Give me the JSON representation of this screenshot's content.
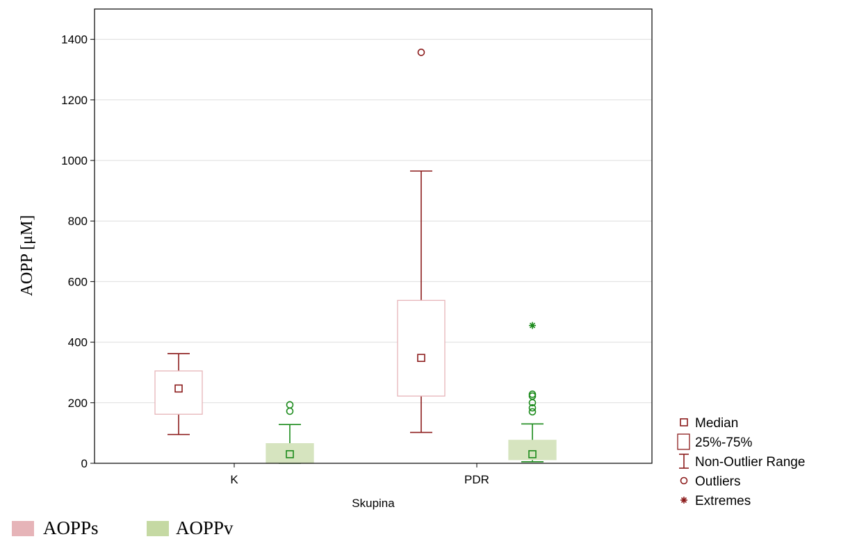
{
  "chart_data": {
    "type": "boxplot",
    "xlabel": "Skupina",
    "ylabel": "AOPP [μM]",
    "ylim": [
      0,
      1500
    ],
    "yticks": [
      0,
      200,
      400,
      600,
      800,
      1000,
      1200,
      1400
    ],
    "categories": [
      "K",
      "PDR"
    ],
    "grid": true,
    "series": [
      {
        "name": "AOPPs",
        "color": "#8b1a1a",
        "fill": "#ffffff",
        "box_edge": "#e6b4b8",
        "boxes": [
          {
            "category": "K",
            "median": 247,
            "q1": 162,
            "q3": 305,
            "whisker_low": 95,
            "whisker_high": 362,
            "outliers": [],
            "extremes": []
          },
          {
            "category": "PDR",
            "median": 348,
            "q1": 222,
            "q3": 538,
            "whisker_low": 102,
            "whisker_high": 965,
            "outliers": [
              1357
            ],
            "extremes": []
          }
        ]
      },
      {
        "name": "AOPPv",
        "color": "#1a8a1a",
        "fill": "#d6e4bf",
        "box_edge": "#d6e4bf",
        "boxes": [
          {
            "category": "K",
            "median": 30,
            "q1": 0,
            "q3": 65,
            "whisker_low": 0,
            "whisker_high": 128,
            "outliers": [
              172,
              193
            ],
            "extremes": []
          },
          {
            "category": "PDR",
            "median": 30,
            "q1": 12,
            "q3": 76,
            "whisker_low": 5,
            "whisker_high": 130,
            "outliers": [
              170,
              183,
              200,
              222,
              228
            ],
            "extremes": [
              455
            ]
          }
        ]
      }
    ],
    "legend": {
      "placement": "bottom-right",
      "items": [
        {
          "symbol": "median",
          "label": "Median"
        },
        {
          "symbol": "box",
          "label": "25%-75%"
        },
        {
          "symbol": "whisker",
          "label": "Non-Outlier Range"
        },
        {
          "symbol": "outlier",
          "label": "Outliers"
        },
        {
          "symbol": "extreme",
          "label": "Extremes"
        }
      ]
    },
    "group_legend": {
      "placement": "bottom-left",
      "items": [
        {
          "label": "AOPPs",
          "color": "#e6b4b8"
        },
        {
          "label": "AOPPv",
          "color": "#c5d9a3"
        }
      ]
    }
  }
}
